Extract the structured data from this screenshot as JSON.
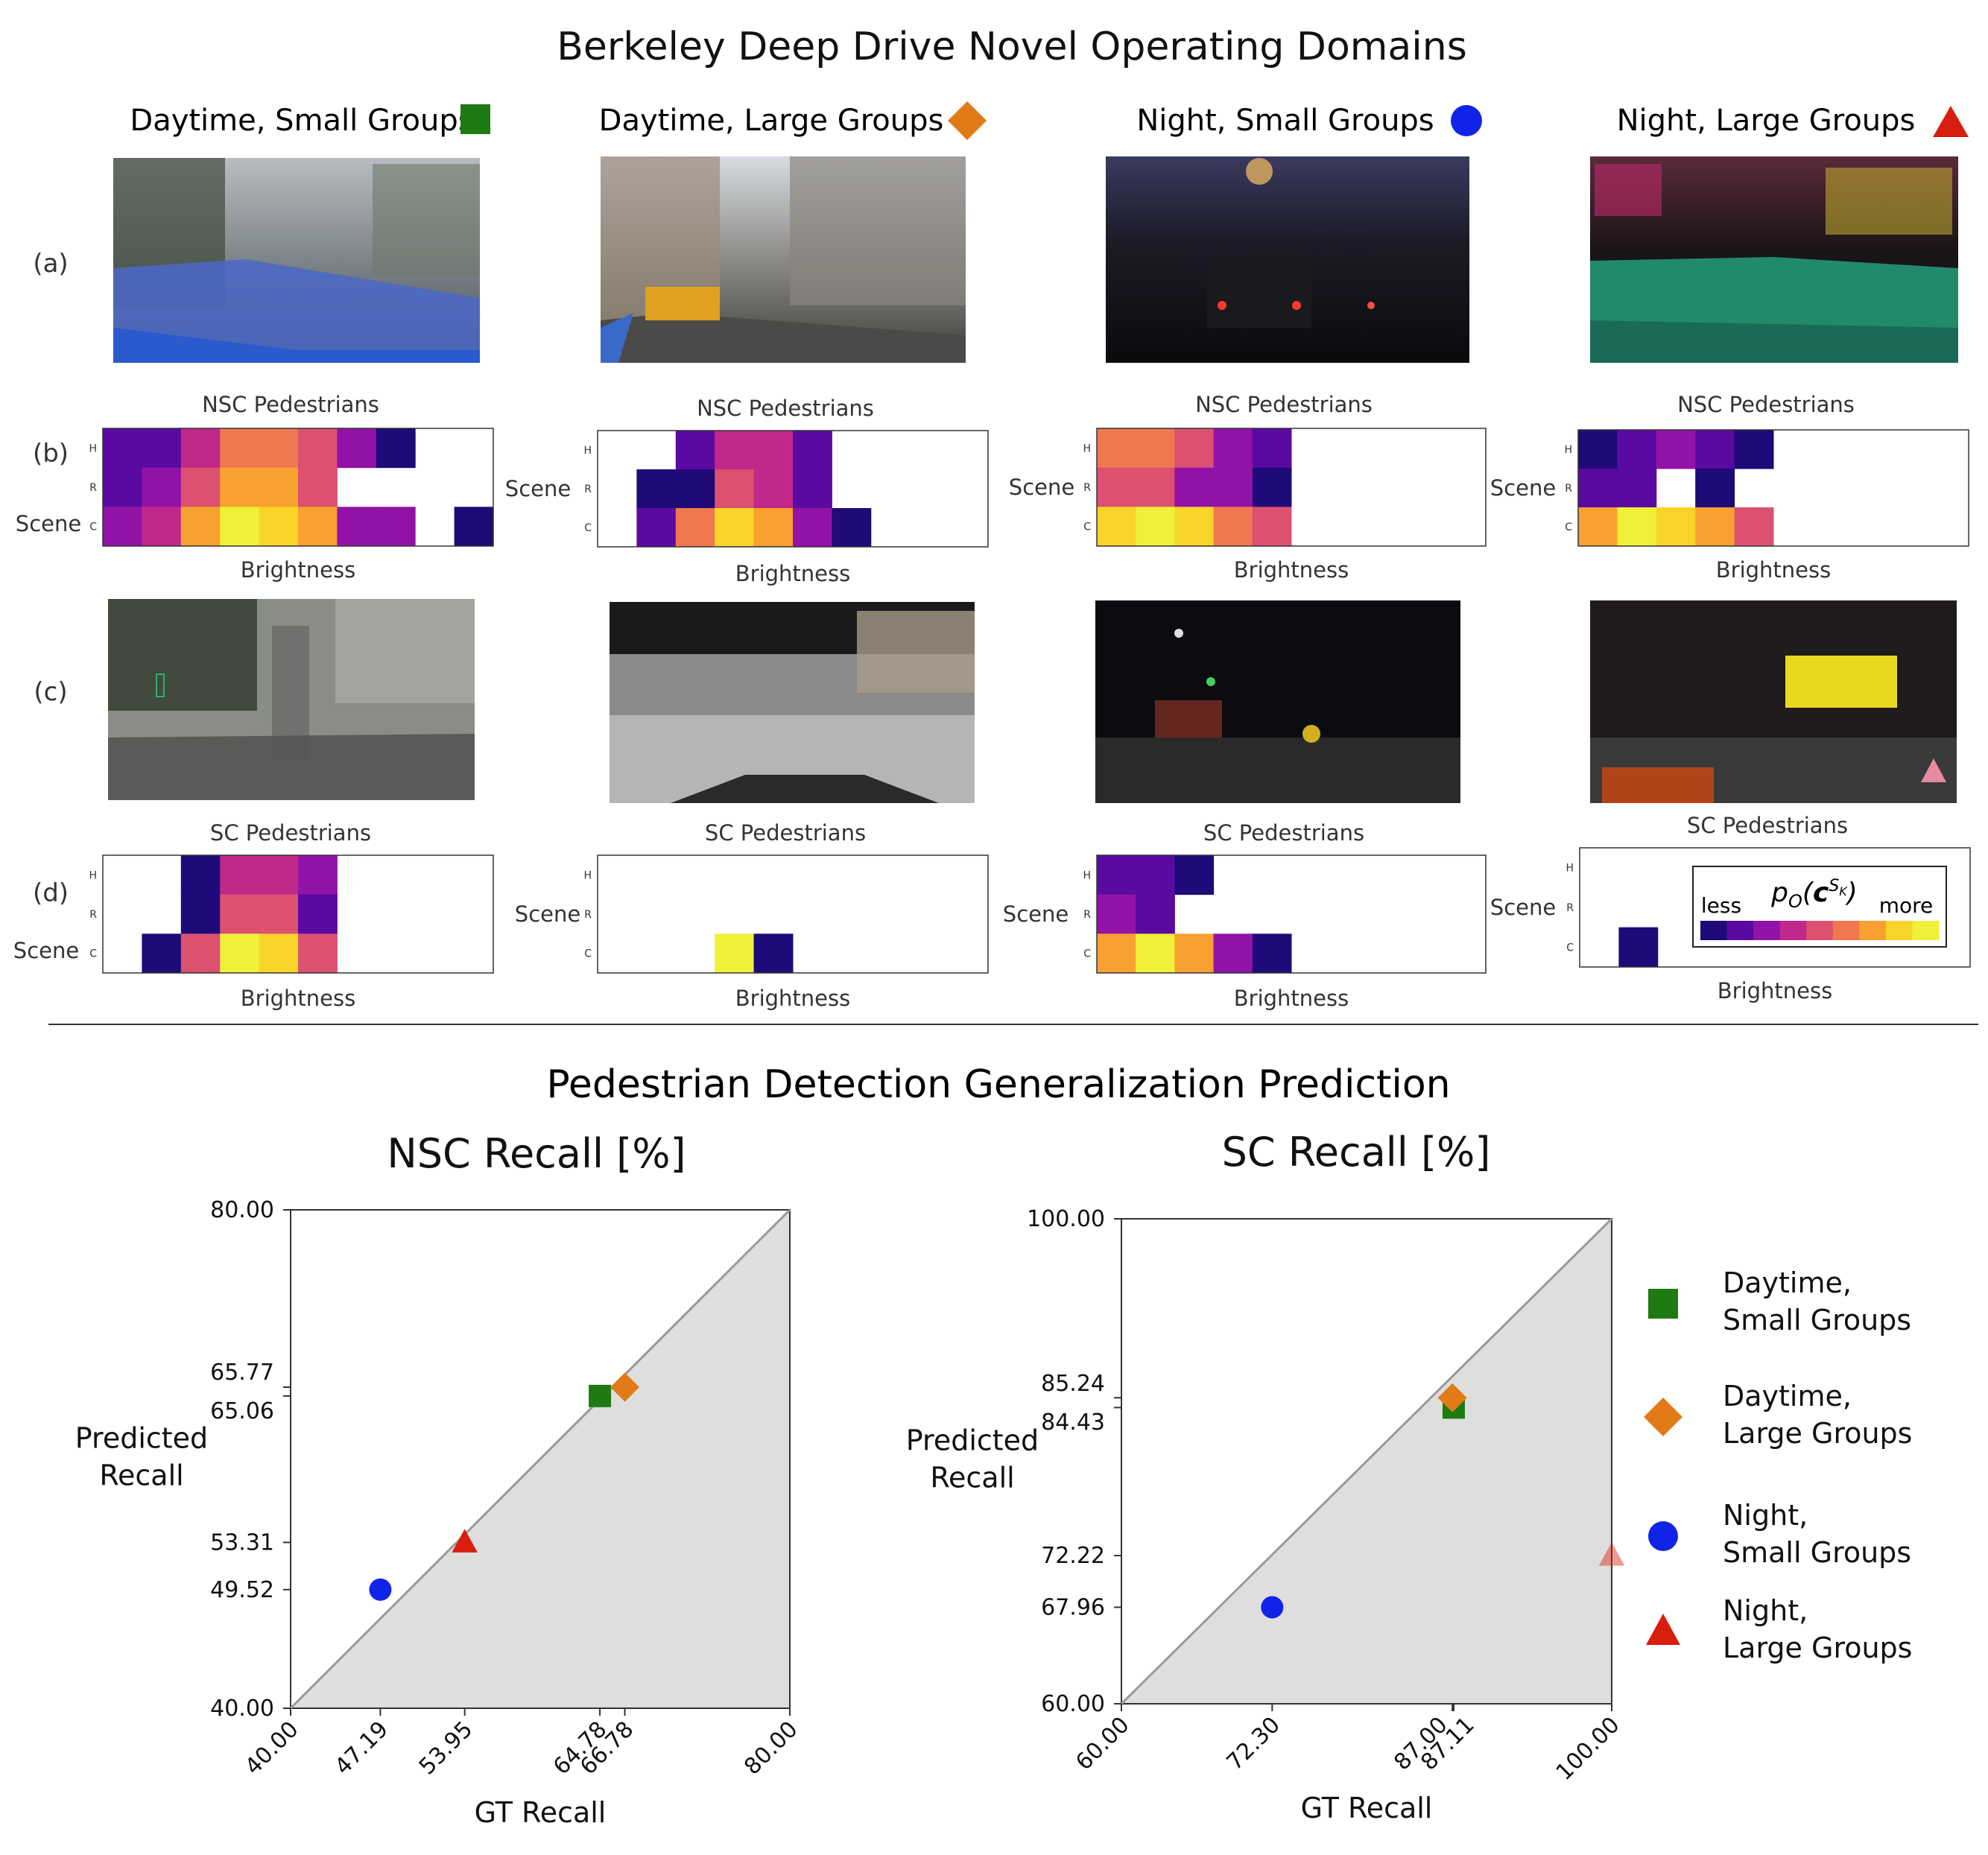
{
  "top_title": "Berkeley Deep Drive Novel Operating Domains",
  "bottom_title": "Pedestrian Detection Generalization Prediction",
  "row_labels": [
    "(a)",
    "(b)",
    "(c)",
    "(d)"
  ],
  "domains": [
    {
      "name": "Daytime, Small Groups",
      "marker": "square",
      "color": "#1e7a12"
    },
    {
      "name": "Daytime, Large Groups",
      "marker": "diamond",
      "color": "#e07b18"
    },
    {
      "name": "Night, Small Groups",
      "marker": "circle",
      "color": "#1024e8"
    },
    {
      "name": "Night, Large Groups",
      "marker": "triangle",
      "color": "#d81e0e"
    }
  ],
  "heatmap_titles": {
    "nsc": "NSC Pedestrians",
    "sc": "SC Pedestrians"
  },
  "heatmap_xlabel": "Brightness",
  "heatmap_ylabel": "Scene",
  "heatmap_ticks": [
    "H",
    "R",
    "C"
  ],
  "colorbar": {
    "less": "less",
    "more": "more",
    "label": "p_O(c^{S_K})",
    "colors": [
      "#1e0a78",
      "#5a0aa0",
      "#9212a8",
      "#c0288a",
      "#dc5070",
      "#f07850",
      "#f8a030",
      "#f8d428",
      "#f0f038"
    ]
  },
  "heatmaps": [
    {
      "domain": "Daytime, Small Groups",
      "set": "NSC",
      "cols": 10,
      "rows": [
        [
          2,
          2,
          4,
          6,
          6,
          5,
          3,
          1,
          0,
          0
        ],
        [
          2,
          3,
          5,
          7,
          7,
          5,
          0,
          0,
          0,
          0
        ],
        [
          3,
          4,
          7,
          9,
          8,
          7,
          3,
          3,
          0,
          1
        ]
      ]
    },
    {
      "domain": "Daytime, Large Groups",
      "set": "NSC",
      "cols": 10,
      "rows": [
        [
          0,
          0,
          2,
          4,
          4,
          2,
          0,
          0,
          0,
          0
        ],
        [
          0,
          1,
          1,
          5,
          4,
          2,
          0,
          0,
          0,
          0
        ],
        [
          0,
          2,
          6,
          8,
          7,
          3,
          1,
          0,
          0,
          0
        ]
      ]
    },
    {
      "domain": "Night, Small Groups",
      "set": "NSC",
      "cols": 10,
      "rows": [
        [
          6,
          6,
          5,
          3,
          2,
          0,
          0,
          0,
          0,
          0
        ],
        [
          5,
          5,
          3,
          3,
          1,
          0,
          0,
          0,
          0,
          0
        ],
        [
          8,
          9,
          8,
          6,
          5,
          0,
          0,
          0,
          0,
          0
        ]
      ]
    },
    {
      "domain": "Night, Large Groups",
      "set": "NSC",
      "cols": 10,
      "rows": [
        [
          1,
          2,
          3,
          2,
          1,
          0,
          0,
          0,
          0,
          0
        ],
        [
          2,
          2,
          0,
          1,
          0,
          0,
          0,
          0,
          0,
          0
        ],
        [
          7,
          9,
          8,
          7,
          5,
          0,
          0,
          0,
          0,
          0
        ]
      ]
    },
    {
      "domain": "Daytime, Small Groups",
      "set": "SC",
      "cols": 10,
      "rows": [
        [
          0,
          0,
          1,
          4,
          4,
          3,
          0,
          0,
          0,
          0
        ],
        [
          0,
          0,
          1,
          5,
          5,
          2,
          0,
          0,
          0,
          0
        ],
        [
          0,
          1,
          5,
          9,
          8,
          5,
          0,
          0,
          0,
          0
        ]
      ]
    },
    {
      "domain": "Daytime, Large Groups",
      "set": "SC",
      "cols": 10,
      "rows": [
        [
          0,
          0,
          0,
          0,
          0,
          0,
          0,
          0,
          0,
          0
        ],
        [
          0,
          0,
          0,
          0,
          0,
          0,
          0,
          0,
          0,
          0
        ],
        [
          0,
          0,
          0,
          9,
          1,
          0,
          0,
          0,
          0,
          0
        ]
      ]
    },
    {
      "domain": "Night, Small Groups",
      "set": "SC",
      "cols": 10,
      "rows": [
        [
          2,
          2,
          1,
          0,
          0,
          0,
          0,
          0,
          0,
          0
        ],
        [
          3,
          2,
          0,
          0,
          0,
          0,
          0,
          0,
          0,
          0
        ],
        [
          7,
          9,
          7,
          3,
          1,
          0,
          0,
          0,
          0,
          0
        ]
      ]
    },
    {
      "domain": "Night, Large Groups",
      "set": "SC",
      "cols": 10,
      "rows": [
        [
          0,
          0,
          0,
          0,
          0,
          0,
          0,
          0,
          0,
          0
        ],
        [
          0,
          0,
          0,
          0,
          0,
          0,
          0,
          0,
          0,
          0
        ],
        [
          0,
          1,
          0,
          0,
          0,
          0,
          0,
          0,
          0,
          0
        ]
      ]
    }
  ],
  "chart_data": [
    {
      "type": "scatter",
      "title": "NSC Recall [%]",
      "xlabel": "GT Recall",
      "ylabel": "Predicted Recall",
      "xlim": [
        40,
        80
      ],
      "ylim": [
        40,
        80
      ],
      "xticks": [
        "40.00",
        "47.19",
        "53.95",
        "64.78",
        "66.78",
        "80.00"
      ],
      "yticks": [
        "40.00",
        "49.52",
        "53.31",
        "65.06",
        "65.77",
        "80.00"
      ],
      "diagonal": true,
      "points": [
        {
          "series": "Daytime, Small Groups",
          "x": 64.78,
          "y": 65.06
        },
        {
          "series": "Daytime, Large Groups",
          "x": 66.78,
          "y": 65.77
        },
        {
          "series": "Night, Small Groups",
          "x": 47.19,
          "y": 49.52
        },
        {
          "series": "Night, Large Groups",
          "x": 53.95,
          "y": 53.31
        }
      ]
    },
    {
      "type": "scatter",
      "title": "SC Recall [%]",
      "xlabel": "GT Recall",
      "ylabel": "Predicted Recall",
      "xlim": [
        60,
        100
      ],
      "ylim": [
        60,
        100
      ],
      "xticks": [
        "60.00",
        "72.30",
        "87.00",
        "87.11",
        "100.00"
      ],
      "yticks": [
        "60.00",
        "67.96",
        "72.22",
        "84.43",
        "85.24",
        "100.00"
      ],
      "diagonal": true,
      "points": [
        {
          "series": "Daytime, Small Groups",
          "x": 87.11,
          "y": 84.43
        },
        {
          "series": "Daytime, Large Groups",
          "x": 87.0,
          "y": 85.24
        },
        {
          "series": "Night, Small Groups",
          "x": 72.3,
          "y": 67.96
        },
        {
          "series": "Night, Large Groups",
          "x": 100.0,
          "y": 72.22,
          "faded": true
        }
      ]
    }
  ],
  "legend": [
    {
      "line1": "Daytime,",
      "line2": "Small Groups",
      "marker": "square",
      "color": "#1e7a12"
    },
    {
      "line1": "Daytime,",
      "line2": "Large Groups",
      "marker": "diamond",
      "color": "#e07b18"
    },
    {
      "line1": "Night,",
      "line2": "Small Groups",
      "marker": "circle",
      "color": "#1024e8"
    },
    {
      "line1": "Night,",
      "line2": "Large Groups",
      "marker": "triangle",
      "color": "#d81e0e"
    }
  ]
}
